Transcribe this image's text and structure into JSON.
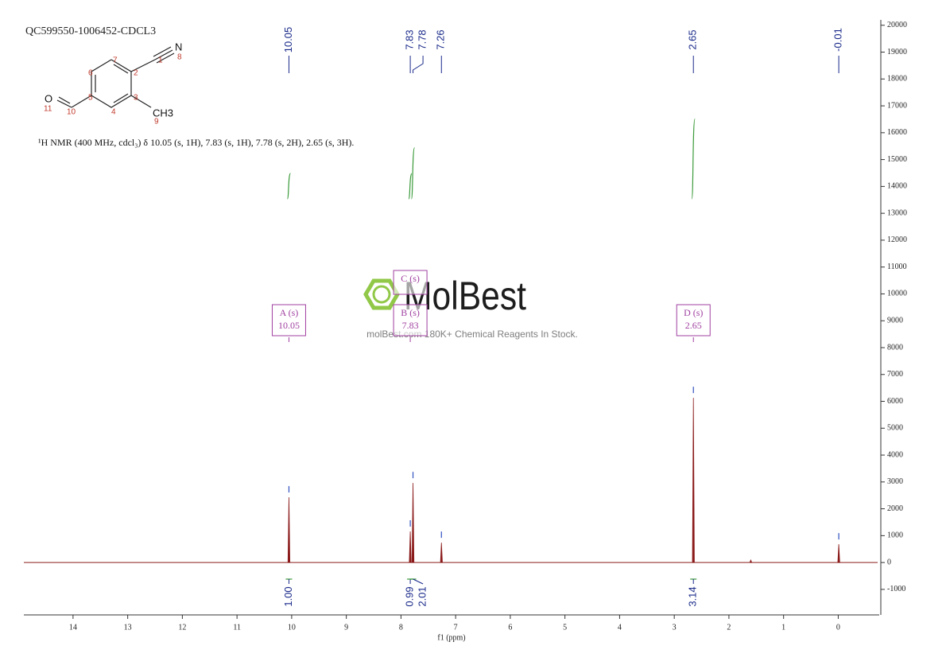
{
  "chart_data": {
    "type": "nmr",
    "title": "QC599550-1006452-CDCL3",
    "description": "¹H NMR (400 MHz, cdcl₃) δ 10.05 (s, 1H), 7.83 (s, 1H), 7.78 (s, 2H), 2.65 (s, 3H).",
    "xlabel": "f1 (ppm)",
    "xlim": [
      14.9,
      -0.75
    ],
    "ylim": [
      -1950,
      20200
    ],
    "xticks": [
      0,
      1,
      2,
      3,
      4,
      5,
      6,
      7,
      8,
      9,
      10,
      11,
      12,
      13,
      14
    ],
    "yticks": [
      -1000,
      0,
      1000,
      2000,
      3000,
      4000,
      5000,
      6000,
      7000,
      8000,
      9000,
      10000,
      11000,
      12000,
      13000,
      14000,
      15000,
      16000,
      17000,
      18000,
      19000,
      20000
    ],
    "color": "#8b1a1a",
    "peaks": {
      "x": [
        10.05,
        7.83,
        7.78,
        7.26,
        2.65,
        1.6,
        -0.01
      ],
      "values": [
        2430,
        1160,
        2960,
        740,
        6130,
        90,
        680
      ]
    },
    "peak_labels": [
      10.05,
      7.83,
      7.78,
      7.26,
      2.65,
      -0.01
    ],
    "integrals": {
      "color": "#3a9a3a",
      "x": [
        10.05,
        7.83,
        7.78,
        2.65
      ],
      "values": [
        1,
        0.99,
        2.01,
        3.14
      ],
      "value_labels": [
        "1.00",
        "0.99",
        "2.01",
        "3.14"
      ]
    },
    "multiplets": [
      {
        "label": "A (s)",
        "shift": 10.05
      },
      {
        "label": "B (s)",
        "shift": 7.83
      },
      {
        "label": "C (s)"
      },
      {
        "label": "D (s)",
        "shift": 2.65
      }
    ],
    "structure": {
      "atoms": [
        "1",
        "2",
        "3",
        "4",
        "5",
        "6",
        "7",
        "8",
        "9",
        "10",
        "11",
        "N",
        "O",
        "CH3"
      ]
    },
    "watermark": {
      "title": "MolBest",
      "text": "molBest.com 180K+ Chemical Reagents In Stock."
    }
  }
}
